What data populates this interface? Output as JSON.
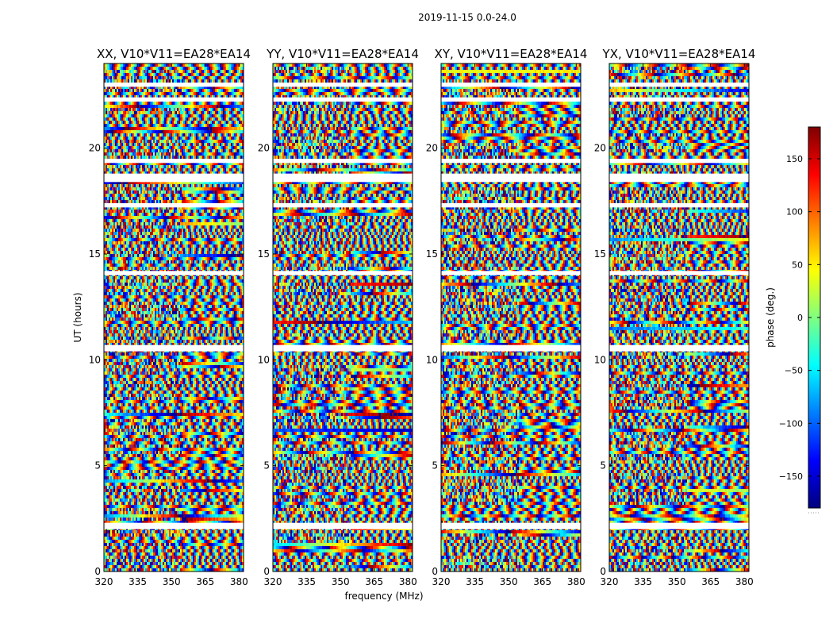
{
  "figure": {
    "suptitle": "2019-11-15 0.0-24.0"
  },
  "chart_data": {
    "type": "heatmap",
    "xlabel": "frequency (MHz)",
    "ylabel": "UT (hours)",
    "xlim": [
      320,
      382
    ],
    "ylim": [
      0,
      24
    ],
    "xticks": [
      320,
      335,
      350,
      365,
      380
    ],
    "xtick_labels": [
      "320",
      "335",
      "350",
      "365",
      "380"
    ],
    "yticks": [
      0,
      5,
      10,
      15,
      20
    ],
    "ytick_labels": [
      "0",
      "5",
      "10",
      "15",
      "20"
    ],
    "panels": [
      {
        "title": "XX, V10*V11=EA28*EA14"
      },
      {
        "title": "YY, V10*V11=EA28*EA14"
      },
      {
        "title": "XY, V10*V11=EA28*EA14"
      },
      {
        "title": "YX, V10*V11=EA28*EA14"
      }
    ],
    "colorbar": {
      "label": "phase (deg.)",
      "range": [
        -180,
        180
      ],
      "ticks": [
        150,
        100,
        50,
        0,
        -50,
        -100,
        -150
      ],
      "tick_labels": [
        "150",
        "100",
        "50",
        "0",
        "−50",
        "−100",
        "−150"
      ],
      "colormap": [
        "#00007f",
        "#0000ff",
        "#007fff",
        "#00ffff",
        "#7fff7f",
        "#ffff00",
        "#ff7f00",
        "#ff0000",
        "#7f0000"
      ]
    },
    "gaps_hours": [
      [
        2.0,
        2.3
      ],
      [
        10.4,
        10.7
      ],
      [
        14.0,
        14.2
      ],
      [
        17.2,
        17.4
      ],
      [
        18.4,
        18.8
      ],
      [
        19.3,
        19.5
      ],
      [
        22.2,
        22.4
      ],
      [
        22.9,
        23.1
      ]
    ]
  }
}
